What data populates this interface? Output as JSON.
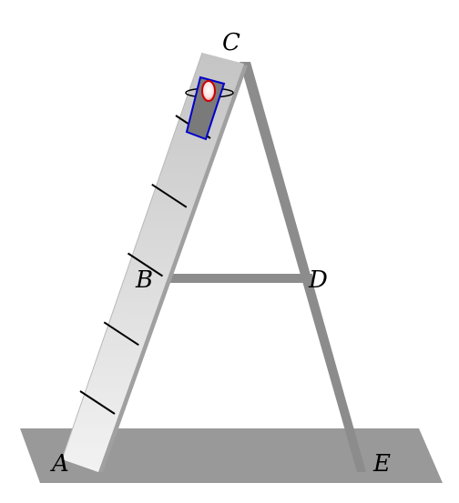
{
  "diagram": {
    "points": {
      "A": "A",
      "B": "B",
      "C": "C",
      "D": "D",
      "E": "E"
    },
    "colors": {
      "ground": "#999999",
      "frame": "#8c8c8c",
      "ladder_face_top": "#c4c4c4",
      "ladder_face_bottom": "#f2f2f2",
      "ladder_side": "#a0a0a0",
      "rungs": "#000000",
      "device_outline": "#0000cc",
      "device_body": "#7a7a7a",
      "device_lens": "#cc0000"
    },
    "rung_count": 5,
    "icons": [
      "hanging-device-icon"
    ]
  }
}
